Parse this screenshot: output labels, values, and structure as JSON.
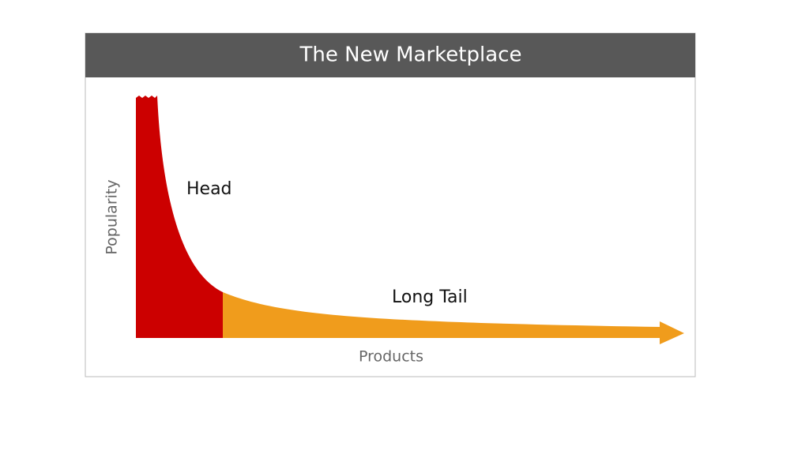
{
  "header": {
    "title": "The New Marketplace"
  },
  "axes": {
    "y_label": "Popularity",
    "x_label": "Products"
  },
  "regions": {
    "head": "Head",
    "tail": "Long Tail"
  }
}
